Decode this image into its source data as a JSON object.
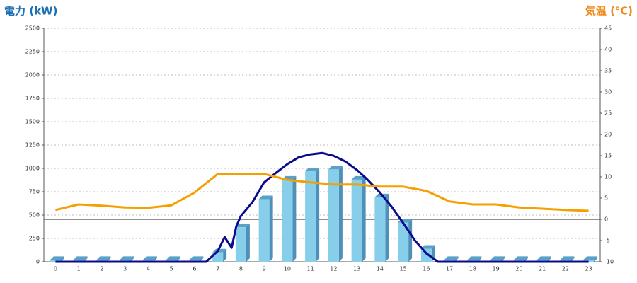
{
  "chart_data": {
    "type": "combo",
    "y_label": "電力 (kW)",
    "y2_label": "気温 (℃)",
    "categories": [
      "0",
      "1",
      "2",
      "3",
      "4",
      "5",
      "6",
      "7",
      "8",
      "9",
      "10",
      "11",
      "12",
      "13",
      "14",
      "15",
      "16",
      "17",
      "18",
      "19",
      "20",
      "21",
      "22",
      "23"
    ],
    "ylim": [
      0,
      2500
    ],
    "yticks": [
      0,
      250,
      500,
      750,
      1000,
      1250,
      1500,
      1750,
      2000,
      2250,
      2500
    ],
    "y2lim": [
      -10,
      45
    ],
    "y2ticks": [
      -10,
      -5,
      0,
      5,
      10,
      15,
      20,
      25,
      30,
      35,
      40,
      45
    ],
    "grid": true,
    "series": [
      {
        "type": "bar",
        "color": "#87ceeb",
        "values": [
          20,
          20,
          20,
          20,
          20,
          20,
          20,
          100,
          370,
          670,
          880,
          970,
          990,
          880,
          690,
          420,
          140,
          20,
          20,
          20,
          20,
          20,
          20,
          20
        ]
      },
      {
        "type": "line",
        "color": "#0a0a8c",
        "x": [
          0,
          6.5,
          7,
          7.3,
          7.6,
          7.8,
          8,
          8.5,
          9,
          9.5,
          10,
          10.5,
          11,
          11.5,
          12,
          12.5,
          13,
          13.5,
          14,
          14.5,
          15,
          15.5,
          16,
          16.5,
          23
        ],
        "values": [
          0,
          0,
          114,
          265,
          150,
          380,
          490,
          640,
          850,
          950,
          1045,
          1120,
          1150,
          1165,
          1135,
          1075,
          985,
          870,
          740,
          590,
          415,
          230,
          90,
          0,
          0
        ]
      },
      {
        "type": "line",
        "axis": "y2",
        "color": "#f5a000",
        "values": [
          2.2,
          3.5,
          3.2,
          2.8,
          2.7,
          3.3,
          6.3,
          10.7,
          10.7,
          10.7,
          9.3,
          8.7,
          8.2,
          8.2,
          7.7,
          7.7,
          6.7,
          4.2,
          3.5,
          3.5,
          2.8,
          2.5,
          2.2,
          2.0
        ]
      }
    ]
  }
}
